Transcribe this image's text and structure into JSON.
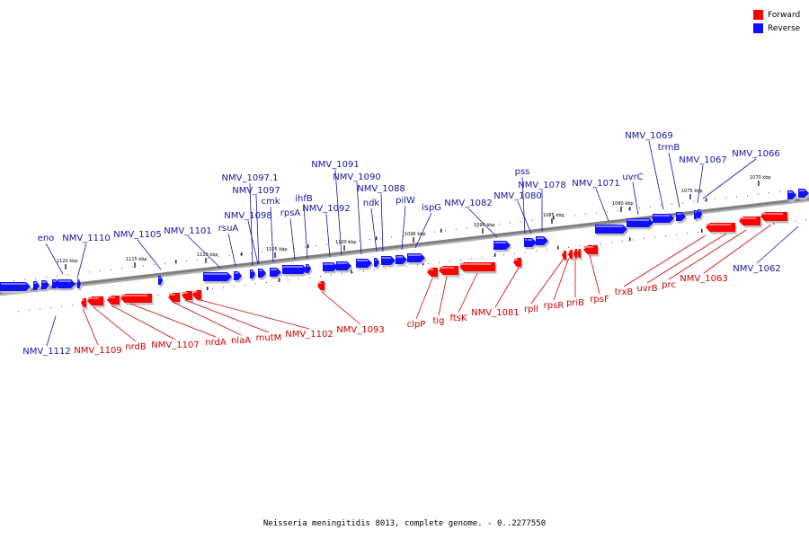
{
  "legend": {
    "forward": {
      "label": "Forward",
      "color": "#ff0000"
    },
    "reverse": {
      "label": "Reverse",
      "color": "#1010ff"
    }
  },
  "caption": "Neisseria meningitidis 8013, complete genome. - 0..2277550",
  "colors": {
    "forward_label": "#cc0000",
    "reverse_label": "#1515a0",
    "backbone": "#808080"
  },
  "scale_labels": [
    "1120 kbp",
    "1115 kbp",
    "1110 kbp",
    "1105 kbp",
    "1100 kbp",
    "1095 kbp",
    "1090 kbp",
    "1085 kbp",
    "1080 kbp",
    "1075 kbp",
    "1070 kbp"
  ],
  "reverse_labels": [
    "eno",
    "NMV_1110",
    "NMV_1105",
    "NMV_1101",
    "rsuA",
    "NMV_1097.1",
    "NMV_1097",
    "NMV_1098",
    "cmk",
    "rpsA",
    "ihfB",
    "NMV_1092",
    "NMV_1091",
    "NMV_1090",
    "NMV_1088",
    "ndk",
    "pilW",
    "ispG",
    "NMV_1082",
    "pss",
    "NMV_1080",
    "NMV_1078",
    "NMV_1071",
    "uvrC",
    "NMV_1069",
    "trmB",
    "NMV_1067",
    "NMV_1066",
    "NMV_1062",
    "NMV_1112"
  ],
  "forward_labels": [
    "NMV_1109",
    "nrdB",
    "NMV_1107",
    "nrdA",
    "nlaA",
    "mutM",
    "NMV_1102",
    "NMV_1093",
    "clpP",
    "tig",
    "ftsK",
    "NMV_1081",
    "rplI",
    "rpsR",
    "priB",
    "rpsF",
    "trxB",
    "uvrB",
    "prc",
    "NMV_1063"
  ]
}
